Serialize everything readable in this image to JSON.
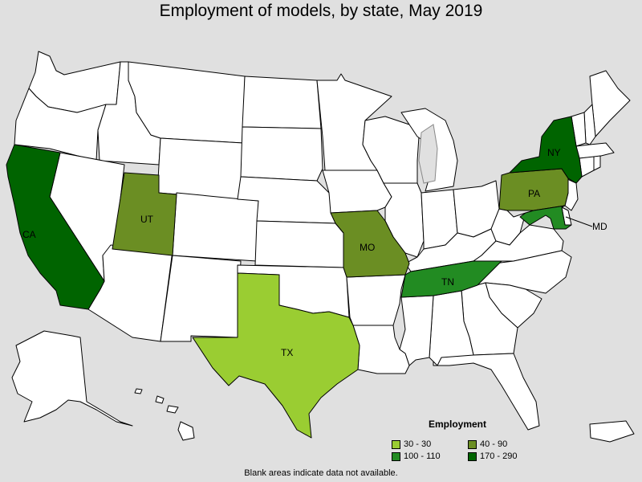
{
  "title": "Employment of models, by state, May 2019",
  "footnote": "Blank areas indicate data not available.",
  "legend": {
    "title": "Employment",
    "items": [
      {
        "label": "30 - 30",
        "color": "#9acd32"
      },
      {
        "label": "40 - 90",
        "color": "#6b8e23"
      },
      {
        "label": "100 - 110",
        "color": "#228b22"
      },
      {
        "label": "170 - 290",
        "color": "#006400"
      }
    ]
  },
  "colors": {
    "no_data": "#ffffff",
    "background": "#e0e0e0",
    "border": "#000000"
  },
  "states": {
    "CA": {
      "label": "CA",
      "range": "170 - 290",
      "color": "#006400"
    },
    "NY": {
      "label": "NY",
      "range": "170 - 290",
      "color": "#006400"
    },
    "UT": {
      "label": "UT",
      "range": "40 - 90",
      "color": "#6b8e23"
    },
    "MO": {
      "label": "MO",
      "range": "40 - 90",
      "color": "#6b8e23"
    },
    "PA": {
      "label": "PA",
      "range": "40 - 90",
      "color": "#6b8e23"
    },
    "TN": {
      "label": "TN",
      "range": "100 - 110",
      "color": "#228b22"
    },
    "MD": {
      "label": "MD",
      "range": "100 - 110",
      "color": "#228b22"
    },
    "TX": {
      "label": "TX",
      "range": "30 - 30",
      "color": "#9acd32"
    }
  }
}
